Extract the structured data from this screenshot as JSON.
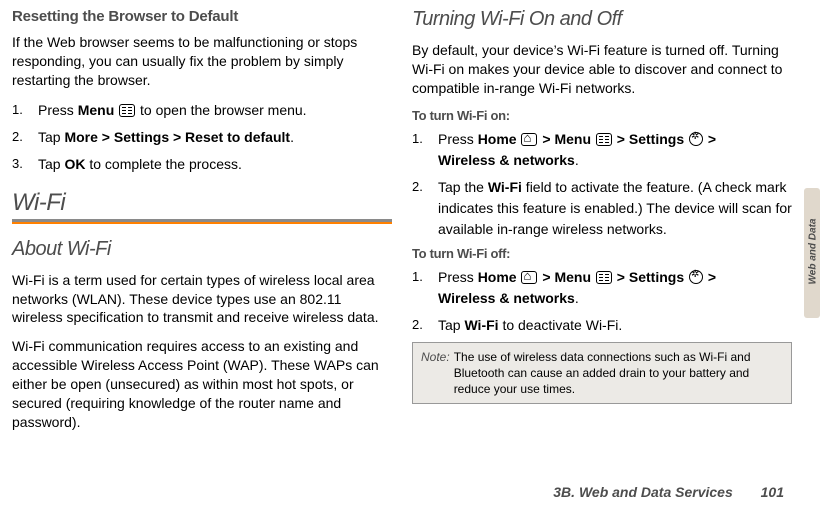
{
  "left": {
    "reset": {
      "heading": "Resetting the Browser to Default",
      "intro": "If the Web browser seems to be malfunctioning or stops responding, you can usually fix the problem by simply restarting the browser.",
      "s1a": "Press ",
      "s1b": "Menu",
      "s1c": " to open the browser menu.",
      "s2a": "Tap ",
      "s2b": "More > Settings > Reset to default",
      "s2c": ".",
      "s3a": "Tap ",
      "s3b": "OK",
      "s3c": " to complete the process."
    },
    "wifi": {
      "title": "Wi-Fi",
      "about": "About Wi-Fi",
      "p1": "Wi-Fi is a term used for certain types of wireless local area networks (WLAN). These device types use an 802.11 wireless specification to transmit and receive wireless data.",
      "p2": "Wi-Fi communication requires access to an existing and accessible Wireless Access Point (WAP). These WAPs can either be open (unsecured) as within most hot spots, or secured (requiring knowledge of the router name and password)."
    }
  },
  "right": {
    "turn": {
      "heading": "Turning Wi-Fi On and Off",
      "intro": "By default, your device’s Wi-Fi feature is turned off. Turning Wi-Fi on makes your device able to discover and connect to compatible in-range Wi-Fi networks.",
      "onlabel": "To turn Wi-Fi on:",
      "on1a": "Press ",
      "on1_home": "Home",
      "on1_sep": " > ",
      "on1_menu": "Menu",
      "on1_settings": "Settings",
      "on1_tail": "Wireless & networks",
      "on1_tailend": ".",
      "on2a": "Tap the ",
      "on2b": "Wi-Fi",
      "on2c": " field to activate the feature. (A check mark indicates this feature is enabled.) The device will scan for available in-range wireless networks.",
      "offlabel": "To turn Wi-Fi off:",
      "off1a": "Press ",
      "off1_home": "Home",
      "off1_sep": " > ",
      "off1_menu": "Menu",
      "off1_settings": "Settings",
      "off1_tail": "Wireless & networks",
      "off1_tailend": ".",
      "off2a": "Tap ",
      "off2b": "Wi-Fi",
      "off2c": " to deactivate Wi-Fi."
    },
    "note": {
      "label": "Note:",
      "text": "The use of wireless data connections such as Wi-Fi and Bluetooth can cause an added drain to your battery and reduce your use times."
    }
  },
  "sidetab": "Web and Data",
  "footer": {
    "title": "3B. Web and Data Services",
    "page": "101"
  }
}
